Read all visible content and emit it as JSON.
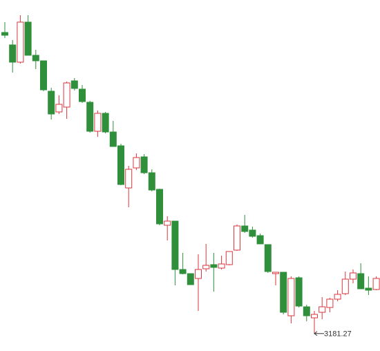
{
  "chart_data": {
    "type": "candlestick",
    "open": [
      3617,
      3599,
      3574,
      3632,
      3584,
      3576,
      3532,
      3502,
      3509,
      3547,
      3535,
      3516,
      3474,
      3500,
      3473,
      3453,
      3392,
      3421,
      3437,
      3414,
      3390,
      3338,
      3344,
      3274,
      3268,
      3261,
      3275,
      3281,
      3276,
      3281,
      3302,
      3337,
      3331,
      3323,
      3310,
      3268,
      3270,
      3207,
      3262,
      3220,
      3204,
      3212,
      3219,
      3231,
      3239,
      3260,
      3268,
      3247,
      3245
    ],
    "high": [
      3632,
      3606,
      3642,
      3642,
      3592,
      3576,
      3537,
      3526,
      3546,
      3551,
      3541,
      3518,
      3504,
      3502,
      3489,
      3456,
      3424,
      3442,
      3441,
      3419,
      3391,
      3351,
      3344,
      3298,
      3268,
      3296,
      3311,
      3298,
      3294,
      3300,
      3339,
      3353,
      3336,
      3326,
      3310,
      3270,
      3270,
      3264,
      3264,
      3223,
      3214,
      3234,
      3233,
      3244,
      3271,
      3274,
      3283,
      3264,
      3264
    ],
    "low": [
      3609,
      3559,
      3572,
      3584,
      3564,
      3532,
      3491,
      3499,
      3492,
      3533,
      3515,
      3472,
      3466,
      3471,
      3452,
      3396,
      3364,
      3418,
      3412,
      3387,
      3338,
      3316,
      3251,
      3267,
      3252,
      3214,
      3271,
      3242,
      3274,
      3280,
      3301,
      3327,
      3320,
      3311,
      3269,
      3251,
      3209,
      3196,
      3219,
      3199,
      3181.27,
      3202,
      3212,
      3228,
      3237,
      3254,
      3246,
      3237,
      3244
    ],
    "close": [
      3613,
      3574,
      3632,
      3584,
      3576,
      3534,
      3499,
      3513,
      3544,
      3536,
      3517,
      3474,
      3500,
      3473,
      3452,
      3397,
      3419,
      3436,
      3414,
      3389,
      3340,
      3344,
      3274,
      3268,
      3252,
      3274,
      3280,
      3277,
      3282,
      3300,
      3337,
      3329,
      3322,
      3311,
      3271,
      3270,
      3212,
      3261,
      3221,
      3207,
      3209,
      3220,
      3231,
      3238,
      3260,
      3269,
      3246,
      3244,
      3261
    ],
    "up_color": "#d9363e",
    "down_color": "#2f8f3a",
    "ylim": [
      3156,
      3664
    ],
    "annotation": "3181.27"
  }
}
